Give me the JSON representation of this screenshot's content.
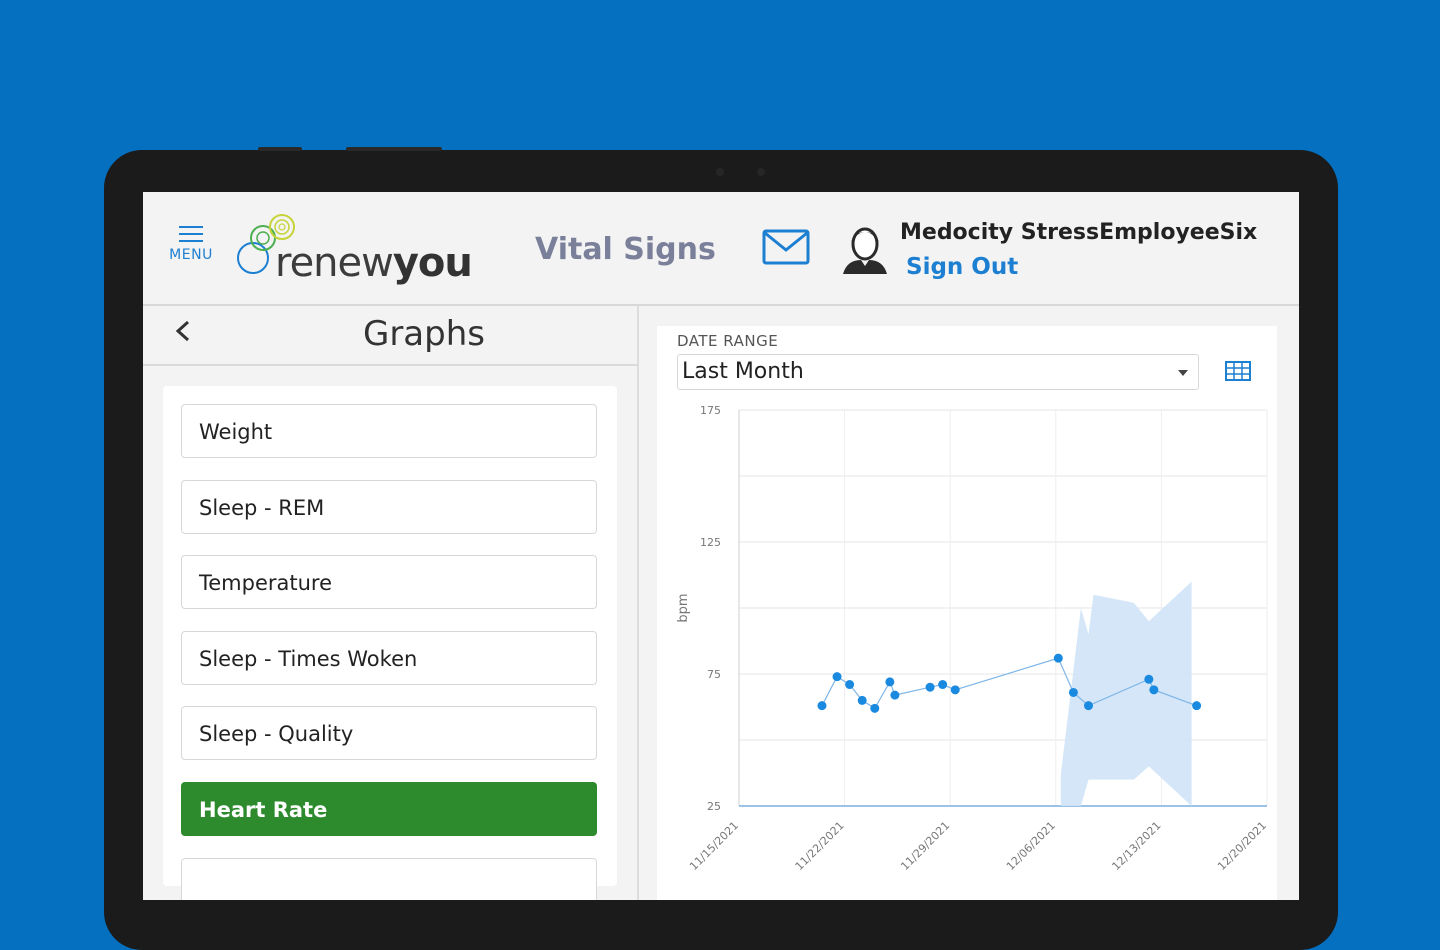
{
  "header": {
    "menu_label": "MENU",
    "logo_text_regular": "renew",
    "logo_text_bold": "you",
    "page_title": "Vital Signs",
    "user_name": "Medocity StressEmployeeSix",
    "sign_out": "Sign Out"
  },
  "graphs_panel": {
    "title": "Graphs",
    "items": [
      {
        "label": "Weight",
        "active": false
      },
      {
        "label": "Sleep - REM",
        "active": false
      },
      {
        "label": "Temperature",
        "active": false
      },
      {
        "label": "Sleep - Times Woken",
        "active": false
      },
      {
        "label": "Sleep - Quality",
        "active": false
      },
      {
        "label": "Heart Rate",
        "active": true
      },
      {
        "label": "",
        "active": false
      }
    ]
  },
  "date_range": {
    "label": "DATE RANGE",
    "value": "Last Month"
  },
  "colors": {
    "background": "#0470bf",
    "accent_blue": "#1d7fd1",
    "active_green": "#2e8b2d",
    "series_blue": "#1a8ae0",
    "band_fill": "#cfe3f6"
  },
  "chart_data": {
    "type": "line",
    "ylabel": "bpm",
    "xlabel": "",
    "ylim": [
      25,
      175
    ],
    "yticks": [
      25,
      75,
      125,
      175
    ],
    "xlim": [
      "11/15/2021",
      "12/20/2021"
    ],
    "xticks": [
      "11/15/2021",
      "11/22/2021",
      "11/29/2021",
      "12/06/2021",
      "12/13/2021",
      "12/20/2021"
    ],
    "grid": true,
    "series": [
      {
        "points": [
          {
            "x": "2021-11-20 12:00",
            "y": 63
          },
          {
            "x": "2021-11-21 12:00",
            "y": 74
          },
          {
            "x": "2021-11-22 08:00",
            "y": 71
          },
          {
            "x": "2021-11-23 04:00",
            "y": 65
          },
          {
            "x": "2021-11-24 00:00",
            "y": 62
          },
          {
            "x": "2021-11-25 00:00",
            "y": 72
          },
          {
            "x": "2021-11-25 08:00",
            "y": 67
          },
          {
            "x": "2021-11-27 16:00",
            "y": 70
          },
          {
            "x": "2021-11-28 12:00",
            "y": 71
          },
          {
            "x": "2021-11-29 08:00",
            "y": 69
          },
          {
            "x": "2021-12-06 04:00",
            "y": 81
          },
          {
            "x": "2021-12-07 04:00",
            "y": 68
          },
          {
            "x": "2021-12-08 04:00",
            "y": 63
          },
          {
            "x": "2021-12-12 04:00",
            "y": 73
          },
          {
            "x": "2021-12-12 12:00",
            "y": 69
          },
          {
            "x": "2021-12-15 08:00",
            "y": 63
          }
        ]
      }
    ],
    "range_band": [
      {
        "x": "2021-12-06 08:00",
        "low": 25,
        "high": 37
      },
      {
        "x": "2021-12-07 16:00",
        "low": 25,
        "high": 100
      },
      {
        "x": "2021-12-08 04:00",
        "low": 35,
        "high": 90
      },
      {
        "x": "2021-12-08 12:00",
        "low": 35,
        "high": 105
      },
      {
        "x": "2021-12-11 04:00",
        "low": 35,
        "high": 102
      },
      {
        "x": "2021-12-12 04:00",
        "low": 40,
        "high": 95
      },
      {
        "x": "2021-12-15 00:00",
        "low": 25,
        "high": 110
      }
    ]
  }
}
